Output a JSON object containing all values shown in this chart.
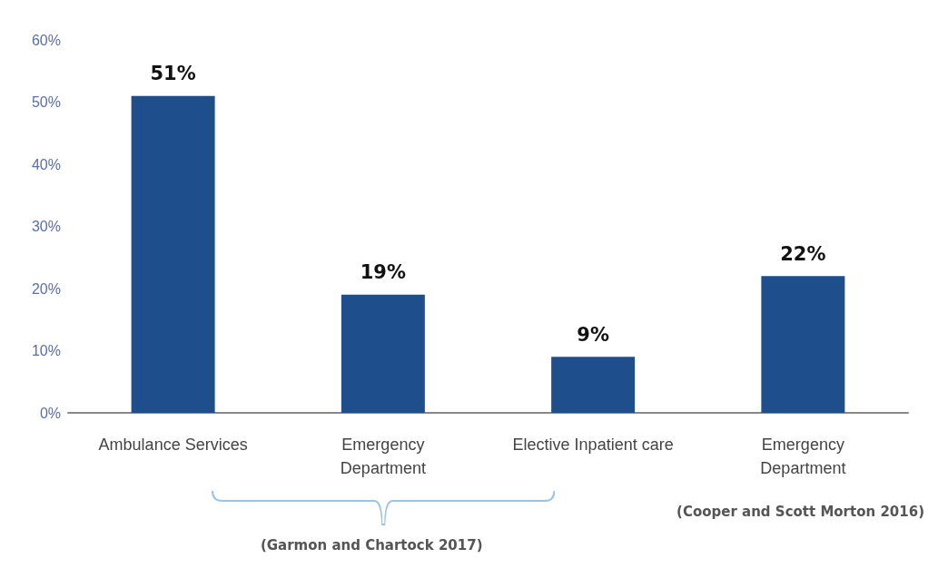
{
  "chart_data": {
    "type": "bar",
    "categories": [
      "Ambulance Services",
      "Emergency\nDepartment",
      "Elective Inpatient care",
      "Emergency\nDepartment"
    ],
    "values": [
      51,
      19,
      9,
      22
    ],
    "value_labels": [
      "51%",
      "19%",
      "9%",
      "22%"
    ],
    "color": "#1f4e8c",
    "ylim": [
      0,
      60
    ],
    "yticks": [
      {
        "value": 0,
        "label": "0%"
      },
      {
        "value": 10,
        "label": "10%"
      },
      {
        "value": 20,
        "label": "20%"
      },
      {
        "value": 30,
        "label": "30%"
      },
      {
        "value": 40,
        "label": "40%"
      },
      {
        "value": 50,
        "label": "50%"
      },
      {
        "value": 60,
        "label": "60%"
      }
    ],
    "grid": false,
    "annotations": [
      "(Garmon and Chartock 2017)",
      "(Cooper and Scott Morton 2016)"
    ]
  }
}
